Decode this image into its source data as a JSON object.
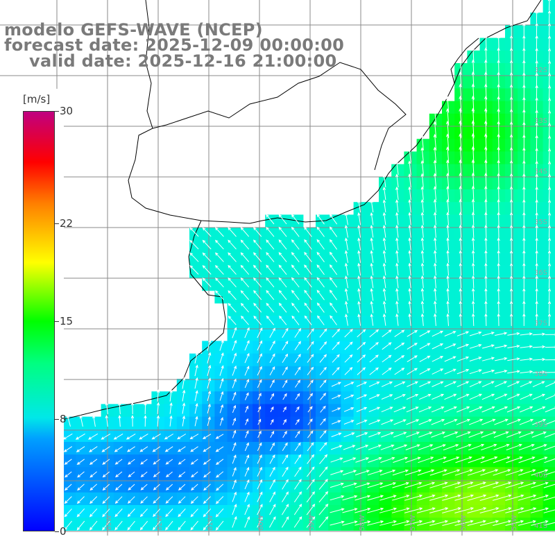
{
  "title": {
    "line1": "modelo GEFS-WAVE (NCEP)",
    "line2": "forecast date: 2025-12-09 00:00:00",
    "line3": "valid date: 2025-12-16 21:00:00"
  },
  "legend": {
    "unit": "[m/s]",
    "ticks": [
      "30",
      "22",
      "15",
      "8",
      "0"
    ],
    "tick_values": [
      30,
      22,
      15,
      8,
      0
    ],
    "range": [
      0,
      30
    ]
  },
  "colors": {
    "ocean_low": "#0000ff",
    "ocean_mid": "#00ffff",
    "ocean_high": "#00ff00",
    "land": "#ffffff",
    "grid": "#8a8a8a",
    "coast": "#000000",
    "arrow": "#ffffff",
    "title": "#7a7a7a"
  },
  "grid": {
    "lat_labels": [
      "32S",
      "33S",
      "34S",
      "35S",
      "36S",
      "37S",
      "38S",
      "39S",
      "40S",
      "41S"
    ],
    "lon_labels": [
      "65W",
      "64W",
      "63W",
      "62W",
      "61W",
      "60W",
      "59W",
      "58W",
      "57W",
      "56W",
      "55W"
    ]
  }
}
